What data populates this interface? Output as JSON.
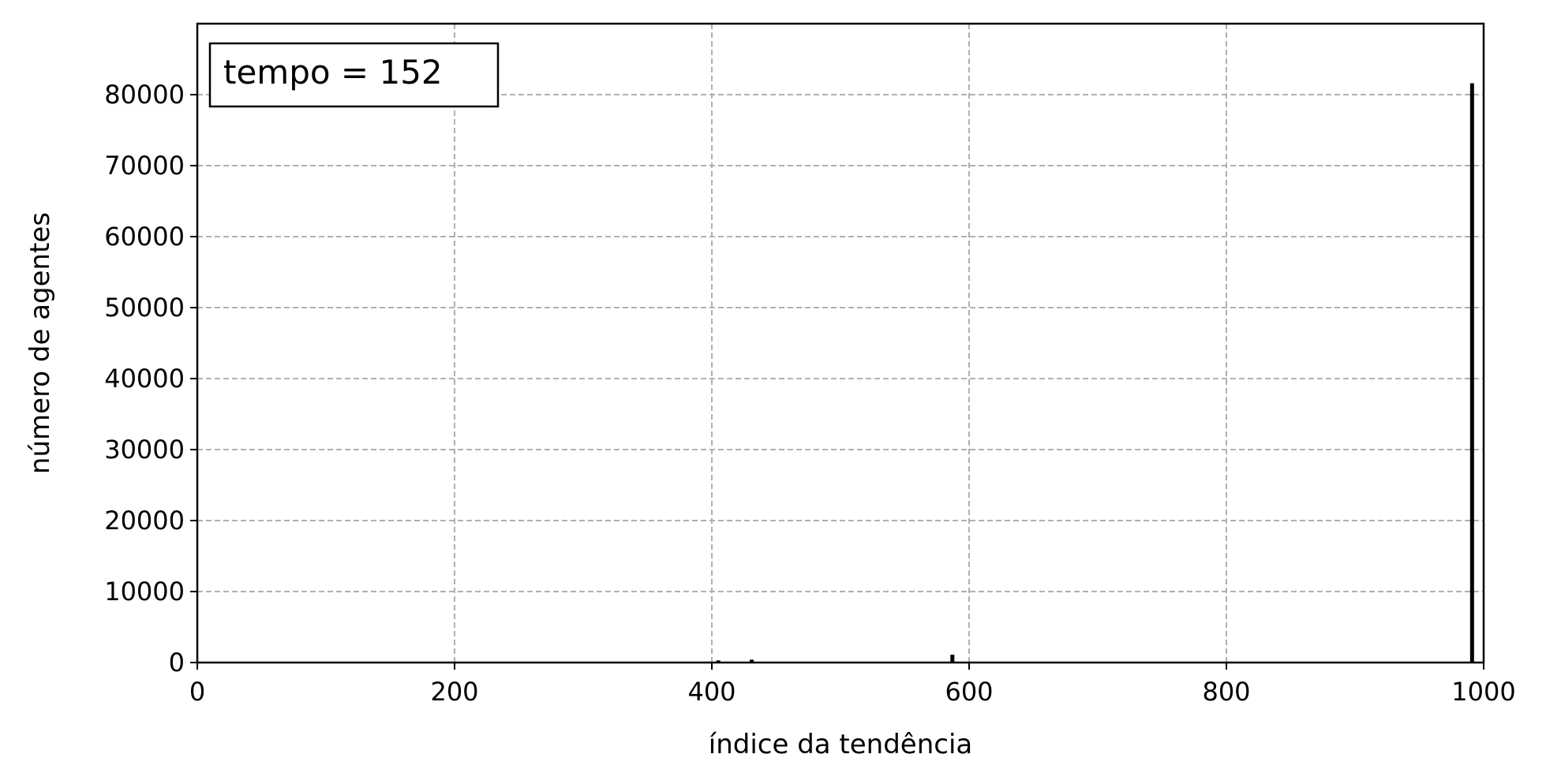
{
  "chart_data": {
    "type": "bar",
    "xlabel": "índice da tendência",
    "ylabel": "número de agentes",
    "annotation": "tempo = 152",
    "annotation_position": "top-left",
    "xlim": [
      0,
      1000
    ],
    "ylim": [
      0,
      90000
    ],
    "xticks": [
      0,
      200,
      400,
      600,
      800,
      1000
    ],
    "yticks": [
      0,
      10000,
      20000,
      30000,
      40000,
      50000,
      60000,
      70000,
      80000
    ],
    "grid": true,
    "grid_style": "dashed",
    "bar_color": "#000000",
    "grid_color": "#b0b0b0",
    "points": [
      {
        "x": 405,
        "y": 300
      },
      {
        "x": 431,
        "y": 400
      },
      {
        "x": 587,
        "y": 1100
      },
      {
        "x": 991,
        "y": 81600
      }
    ]
  }
}
